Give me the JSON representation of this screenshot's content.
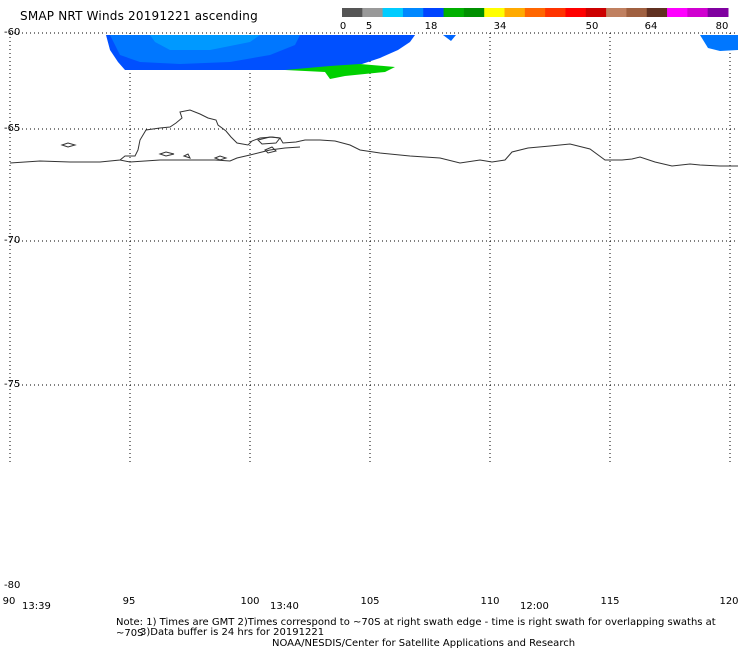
{
  "title": "SMAP NRT Winds 20191221 ascending",
  "colorbar": {
    "segments": [
      "#555555",
      "#999999",
      "#00ccff",
      "#0088ff",
      "#0044ff",
      "#00b000",
      "#009000",
      "#ffff00",
      "#ffaa00",
      "#ff6600",
      "#ff3300",
      "#ff0000",
      "#cc0000",
      "#c08060",
      "#a06040",
      "#603020",
      "#ff00ff",
      "#d000d0",
      "#8000a0"
    ],
    "tick_labels": [
      "0",
      "5",
      "18",
      "34",
      "50",
      "64",
      "80"
    ]
  },
  "lat_labels": [
    "-60",
    "-65",
    "-70",
    "-75",
    "-80"
  ],
  "lon_labels": [
    "90",
    "95",
    "100",
    "105",
    "110",
    "115",
    "120"
  ],
  "swath_times": [
    "13:39",
    "13:40",
    "12:00"
  ],
  "notes": {
    "line1": "Note: 1) Times are GMT 2)Times correspond to ~70S at right swath edge - time is right swath for overlapping swaths at ~70S",
    "line2": "3)Data buffer is 24 hrs for 20191221",
    "line3": "NOAA/NESDIS/Center for Satellite Applications and Research"
  }
}
